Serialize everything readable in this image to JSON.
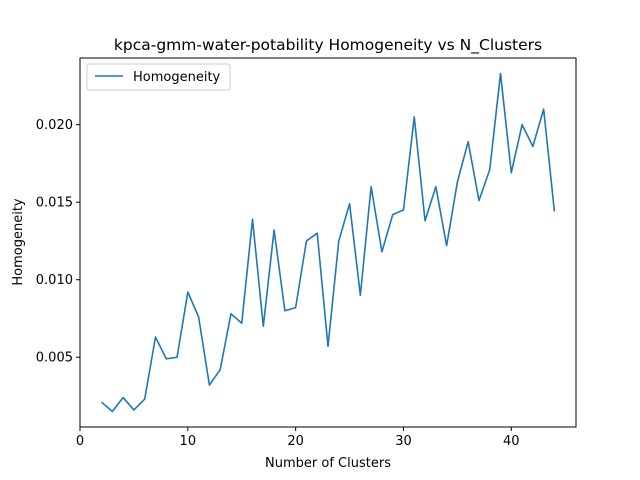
{
  "chart_data": {
    "type": "line",
    "title": "kpca-gmm-water-potability Homogeneity vs N_Clusters",
    "xlabel": "Number of Clusters",
    "ylabel": "Homogeneity",
    "xlim": [
      0,
      46
    ],
    "ylim": [
      0.0005,
      0.0243
    ],
    "xticks": [
      0,
      10,
      20,
      30,
      40
    ],
    "yticks": [
      0.005,
      0.01,
      0.015,
      0.02
    ],
    "ytick_labels": [
      "0.005",
      "0.010",
      "0.015",
      "0.020"
    ],
    "legend": "upper-left",
    "grid": false,
    "series": [
      {
        "name": "Homogeneity",
        "color": "#1f77b4",
        "x": [
          2,
          3,
          4,
          5,
          6,
          7,
          8,
          9,
          10,
          11,
          12,
          13,
          14,
          15,
          16,
          17,
          18,
          19,
          20,
          21,
          22,
          23,
          24,
          25,
          26,
          27,
          28,
          29,
          30,
          31,
          32,
          33,
          34,
          35,
          36,
          37,
          38,
          39,
          40,
          41,
          42,
          43,
          44
        ],
        "y": [
          0.0021,
          0.0015,
          0.0024,
          0.0016,
          0.0023,
          0.0063,
          0.0049,
          0.005,
          0.0092,
          0.0076,
          0.0032,
          0.0042,
          0.0078,
          0.0072,
          0.0139,
          0.007,
          0.0132,
          0.008,
          0.0082,
          0.0125,
          0.013,
          0.0057,
          0.0125,
          0.0149,
          0.009,
          0.016,
          0.0118,
          0.0142,
          0.0145,
          0.0205,
          0.0138,
          0.016,
          0.0122,
          0.0163,
          0.0189,
          0.0151,
          0.0171,
          0.0233,
          0.0169,
          0.02,
          0.0186,
          0.021,
          0.0144
        ]
      }
    ]
  }
}
